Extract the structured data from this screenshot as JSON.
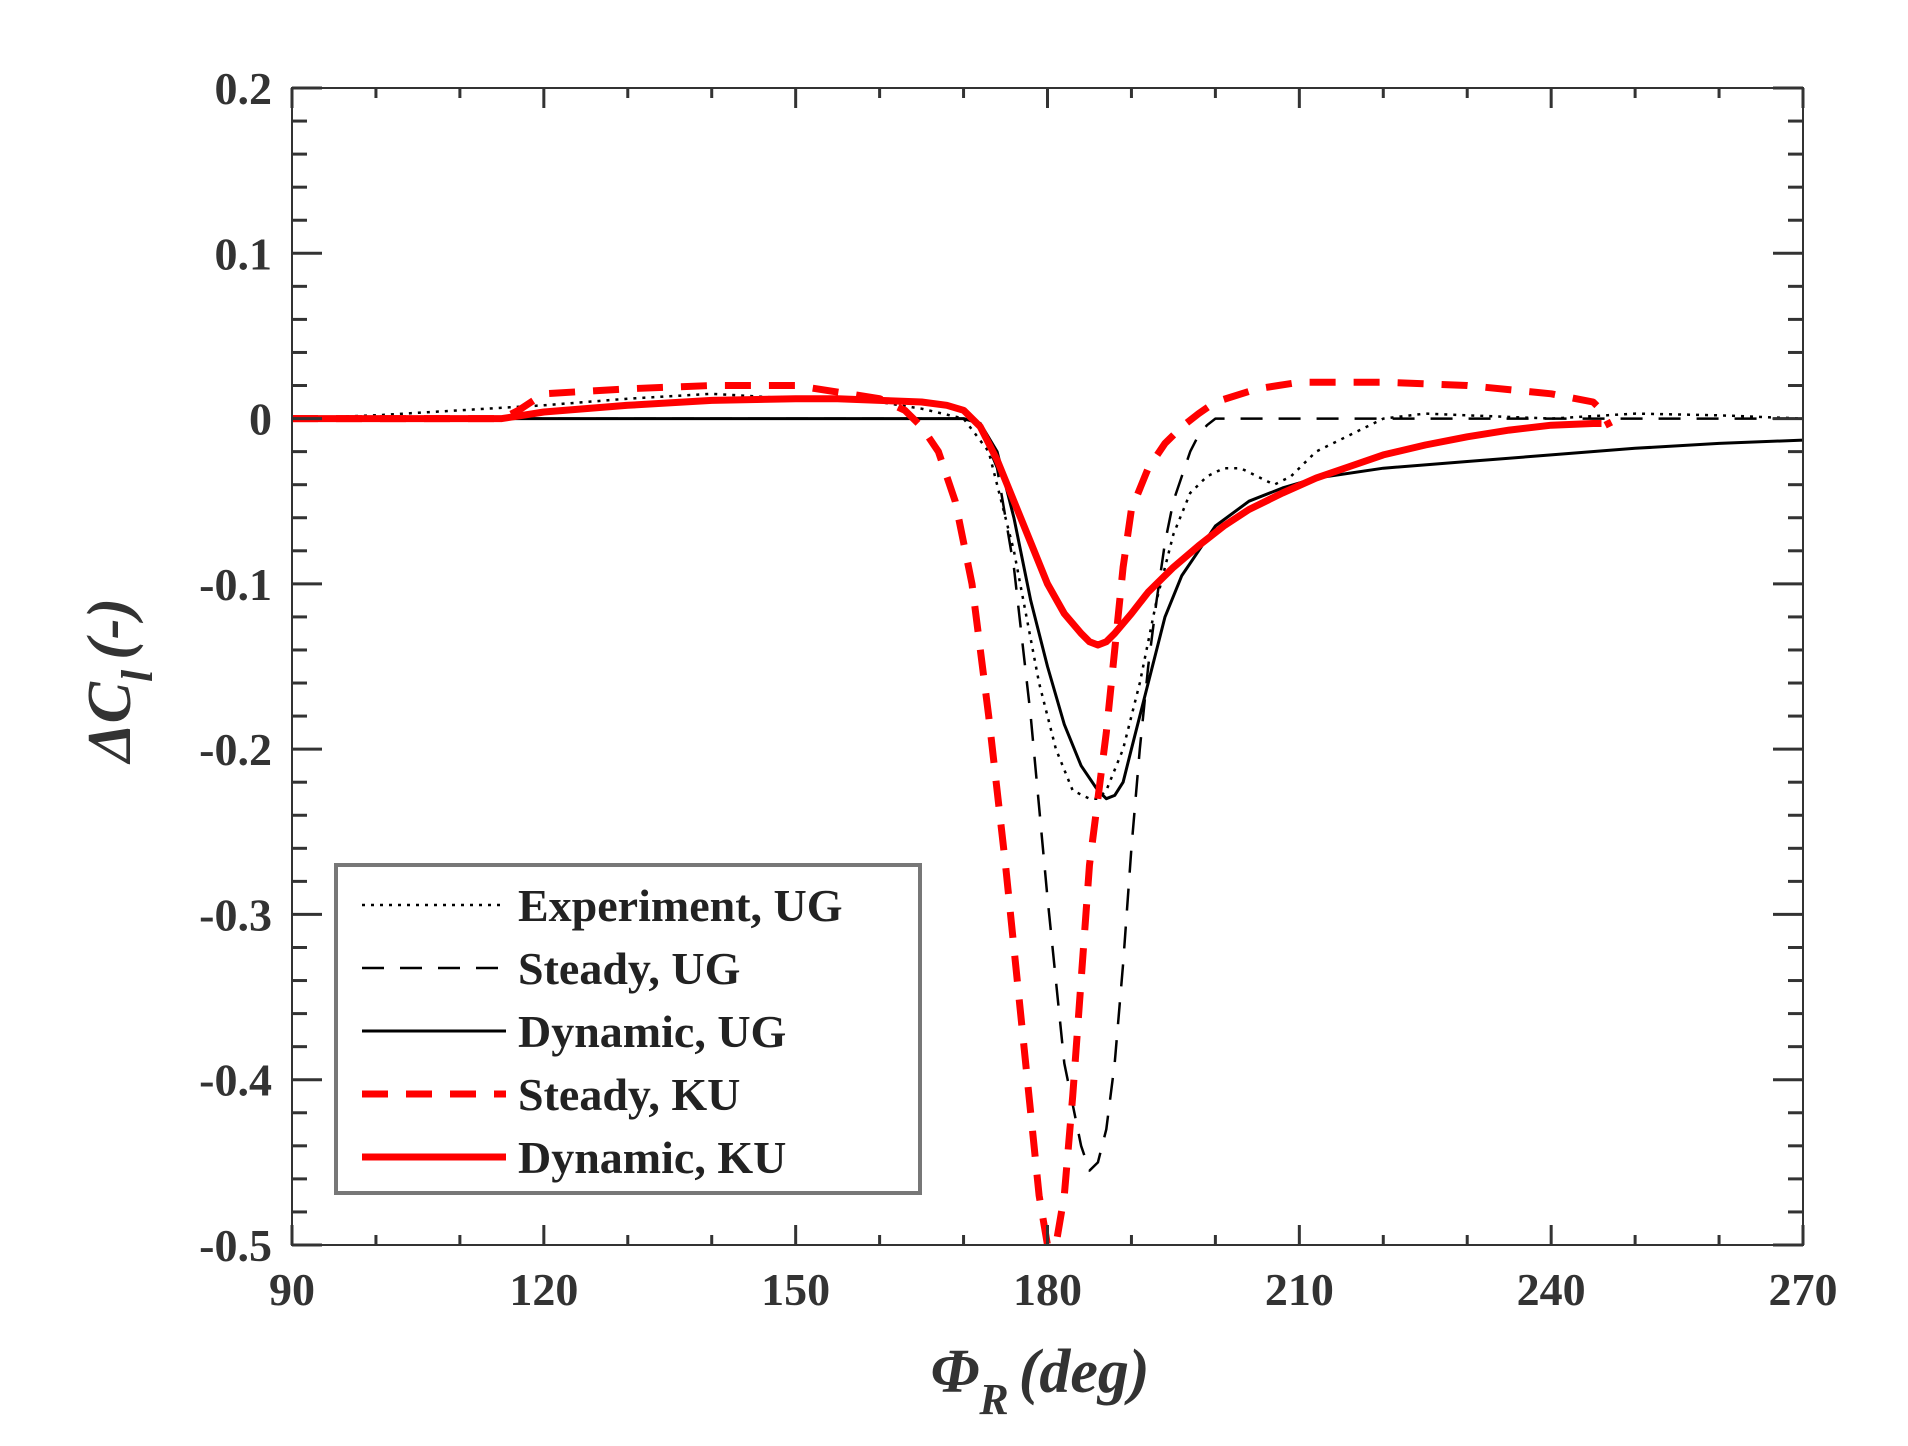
{
  "chart_data": {
    "type": "line",
    "title": "",
    "xlabel": "Φ_R (deg)",
    "xlabel_main": "Φ",
    "xlabel_sub": "R",
    "xlabel_unit": "(deg)",
    "ylabel": "ΔC_l (-)",
    "ylabel_main": "ΔC",
    "ylabel_sub": "l",
    "ylabel_unit": "(-)",
    "xlim": [
      90,
      270
    ],
    "ylim": [
      -0.5,
      0.2
    ],
    "xticks": [
      90,
      120,
      150,
      180,
      210,
      240,
      270
    ],
    "xtick_labels": [
      "90",
      "120",
      "150",
      "180",
      "210",
      "240",
      "270"
    ],
    "yticks": [
      0.2,
      0.1,
      0,
      -0.1,
      -0.2,
      -0.3,
      -0.4,
      -0.5
    ],
    "ytick_labels": [
      "0.2",
      "0.1",
      "0",
      "-0.1",
      "-0.2",
      "-0.3",
      "-0.4",
      "-0.5"
    ],
    "grid": false,
    "legend_position": "bottom-left",
    "series": [
      {
        "name": "Experiment, UG",
        "color": "#000000",
        "style": "dotted",
        "x": [
          90,
          100,
          110,
          120,
          130,
          140,
          150,
          160,
          165,
          170,
          173,
          176,
          179,
          181,
          183,
          185,
          186,
          187,
          189,
          191,
          193,
          195,
          197,
          199,
          201,
          203,
          205,
          207,
          209,
          212,
          216,
          220,
          225,
          230,
          240,
          250,
          260,
          270
        ],
        "y": [
          0,
          0.002,
          0.005,
          0.008,
          0.012,
          0.015,
          0.012,
          0.01,
          0.006,
          0.0,
          -0.02,
          -0.08,
          -0.16,
          -0.2,
          -0.225,
          -0.23,
          -0.23,
          -0.225,
          -0.2,
          -0.16,
          -0.11,
          -0.07,
          -0.045,
          -0.035,
          -0.03,
          -0.03,
          -0.035,
          -0.04,
          -0.035,
          -0.02,
          -0.01,
          0.0,
          0.003,
          0.002,
          0.0,
          0.003,
          0.002,
          0.0
        ]
      },
      {
        "name": "Steady, UG",
        "color": "#000000",
        "style": "dashed",
        "x": [
          90,
          120,
          150,
          170,
          172,
          174,
          176,
          178,
          180,
          182,
          184,
          185,
          186,
          187,
          188,
          189,
          190,
          191,
          192,
          193,
          194,
          195,
          196,
          197,
          198,
          199,
          200,
          210,
          240,
          270
        ],
        "y": [
          0,
          0,
          0,
          0,
          -0.005,
          -0.03,
          -0.09,
          -0.18,
          -0.29,
          -0.39,
          -0.44,
          -0.455,
          -0.45,
          -0.43,
          -0.39,
          -0.33,
          -0.26,
          -0.2,
          -0.15,
          -0.11,
          -0.075,
          -0.05,
          -0.035,
          -0.02,
          -0.01,
          -0.004,
          0,
          0,
          0,
          0
        ]
      },
      {
        "name": "Dynamic, UG",
        "color": "#000000",
        "style": "solid",
        "x": [
          90,
          120,
          150,
          165,
          170,
          172,
          174,
          176,
          178,
          180,
          182,
          184,
          186,
          187,
          188,
          189,
          190,
          192,
          194,
          196,
          198,
          200,
          204,
          208,
          212,
          220,
          230,
          240,
          250,
          260,
          270
        ],
        "y": [
          0,
          0,
          0,
          0,
          0,
          -0.003,
          -0.02,
          -0.06,
          -0.11,
          -0.15,
          -0.185,
          -0.21,
          -0.225,
          -0.23,
          -0.228,
          -0.22,
          -0.2,
          -0.16,
          -0.12,
          -0.095,
          -0.08,
          -0.065,
          -0.05,
          -0.042,
          -0.036,
          -0.03,
          -0.026,
          -0.022,
          -0.018,
          -0.015,
          -0.013
        ]
      },
      {
        "name": "Steady, KU",
        "color": "#ff0000",
        "style": "dashed",
        "x": [
          90,
          100,
          110,
          115,
          117,
          120,
          130,
          140,
          150,
          160,
          163,
          165,
          167,
          169,
          171,
          173,
          175,
          177,
          178,
          179,
          180,
          181,
          182,
          183,
          184,
          185,
          186,
          187,
          188,
          189,
          190,
          192,
          194,
          196,
          198,
          200,
          205,
          210,
          220,
          230,
          240,
          245,
          246,
          247
        ],
        "y": [
          0,
          0,
          0,
          0,
          0.005,
          0.015,
          0.018,
          0.02,
          0.02,
          0.012,
          0.005,
          -0.005,
          -0.02,
          -0.05,
          -0.1,
          -0.18,
          -0.27,
          -0.37,
          -0.42,
          -0.47,
          -0.5,
          -0.5,
          -0.47,
          -0.41,
          -0.34,
          -0.27,
          -0.23,
          -0.19,
          -0.14,
          -0.09,
          -0.055,
          -0.03,
          -0.015,
          -0.005,
          0.003,
          0.01,
          0.018,
          0.022,
          0.022,
          0.02,
          0.015,
          0.01,
          0.005,
          -0.005
        ]
      },
      {
        "name": "Dynamic, KU",
        "color": "#ff0000",
        "style": "solid",
        "x": [
          90,
          110,
          115,
          120,
          130,
          140,
          150,
          155,
          160,
          165,
          168,
          170,
          172,
          174,
          176,
          178,
          180,
          182,
          184,
          185,
          186,
          187,
          188,
          190,
          192,
          195,
          198,
          201,
          204,
          208,
          212,
          216,
          220,
          225,
          230,
          235,
          240,
          245,
          246
        ],
        "y": [
          0,
          0,
          0,
          0.004,
          0.008,
          0.011,
          0.012,
          0.012,
          0.011,
          0.01,
          0.008,
          0.005,
          -0.005,
          -0.025,
          -0.05,
          -0.075,
          -0.1,
          -0.118,
          -0.13,
          -0.135,
          -0.137,
          -0.135,
          -0.13,
          -0.118,
          -0.105,
          -0.09,
          -0.077,
          -0.065,
          -0.055,
          -0.045,
          -0.036,
          -0.029,
          -0.022,
          -0.016,
          -0.011,
          -0.007,
          -0.004,
          -0.003,
          -0.003
        ]
      }
    ]
  }
}
